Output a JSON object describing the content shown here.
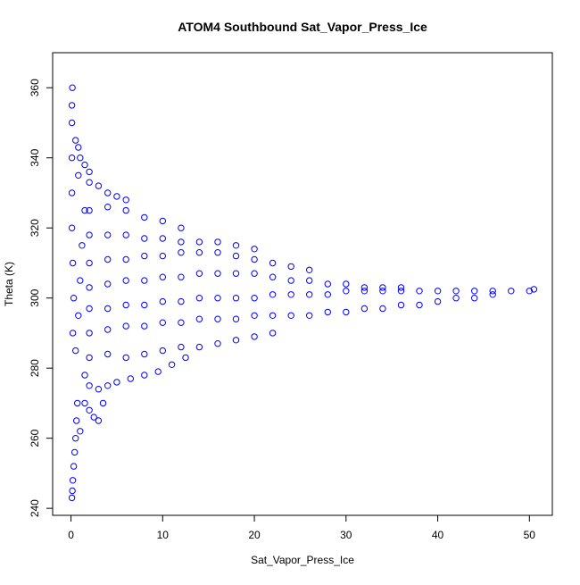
{
  "chart_data": {
    "type": "scatter",
    "title": "ATOM4 Southbound Sat_Vapor_Press_Ice",
    "xlabel": "Sat_Vapor_Press_Ice",
    "ylabel": "Theta (K)",
    "xlim": [
      -2,
      52.5
    ],
    "ylim": [
      238,
      370
    ],
    "x_ticks": [
      0,
      10,
      20,
      30,
      40,
      50
    ],
    "y_ticks": [
      240,
      260,
      280,
      300,
      320,
      340,
      360
    ],
    "marker": "open-circle",
    "series_color": "#0000ff",
    "grid": false,
    "legend": "none",
    "series": [
      {
        "points": [
          [
            0.1,
            243
          ],
          [
            0.15,
            245
          ],
          [
            0.2,
            248
          ],
          [
            0.3,
            252
          ],
          [
            0.4,
            256
          ],
          [
            0.5,
            260
          ],
          [
            0.6,
            265
          ],
          [
            0.7,
            270
          ],
          [
            0.2,
            290
          ],
          [
            0.3,
            300
          ],
          [
            0.2,
            310
          ],
          [
            0.1,
            320
          ],
          [
            0.1,
            330
          ],
          [
            0.1,
            340
          ],
          [
            0.1,
            350
          ],
          [
            0.1,
            355
          ],
          [
            0.15,
            360
          ],
          [
            0.5,
            285
          ],
          [
            0.8,
            295
          ],
          [
            1.0,
            305
          ],
          [
            1.2,
            315
          ],
          [
            1.5,
            325
          ],
          [
            0.8,
            335
          ],
          [
            1.0,
            262
          ],
          [
            1.5,
            270
          ],
          [
            2.0,
            268
          ],
          [
            2.5,
            266
          ],
          [
            3.0,
            265
          ],
          [
            3.5,
            270
          ],
          [
            1.5,
            278
          ],
          [
            2.0,
            275
          ],
          [
            3.0,
            274
          ],
          [
            4.0,
            275
          ],
          [
            5.0,
            276
          ],
          [
            6.5,
            277
          ],
          [
            8.0,
            278
          ],
          [
            9.5,
            279
          ],
          [
            11.0,
            281
          ],
          [
            12.5,
            283
          ],
          [
            2.0,
            283
          ],
          [
            4.0,
            284
          ],
          [
            6.0,
            283
          ],
          [
            8.0,
            284
          ],
          [
            10.0,
            285
          ],
          [
            12.0,
            286
          ],
          [
            14.0,
            286
          ],
          [
            16.0,
            287
          ],
          [
            18.0,
            288
          ],
          [
            20.0,
            289
          ],
          [
            22.0,
            290
          ],
          [
            2.0,
            290
          ],
          [
            4.0,
            291
          ],
          [
            6.0,
            292
          ],
          [
            8.0,
            292
          ],
          [
            10.0,
            293
          ],
          [
            12.0,
            293
          ],
          [
            14.0,
            294
          ],
          [
            16.0,
            294
          ],
          [
            18.0,
            294
          ],
          [
            20.0,
            295
          ],
          [
            22.0,
            295
          ],
          [
            24.0,
            295
          ],
          [
            26.0,
            295
          ],
          [
            28.0,
            296
          ],
          [
            30.0,
            296
          ],
          [
            32.0,
            297
          ],
          [
            34.0,
            297
          ],
          [
            36.0,
            298
          ],
          [
            38.0,
            298
          ],
          [
            40.0,
            299
          ],
          [
            42.0,
            300
          ],
          [
            44.0,
            300
          ],
          [
            46.0,
            301
          ],
          [
            48.0,
            302
          ],
          [
            50.0,
            302
          ],
          [
            50.5,
            302.5
          ],
          [
            2.0,
            297
          ],
          [
            4.0,
            297
          ],
          [
            6.0,
            298
          ],
          [
            8.0,
            298
          ],
          [
            10.0,
            299
          ],
          [
            12.0,
            299
          ],
          [
            14.0,
            300
          ],
          [
            16.0,
            300
          ],
          [
            18.0,
            300
          ],
          [
            20.0,
            300
          ],
          [
            22.0,
            301
          ],
          [
            24.0,
            301
          ],
          [
            26.0,
            301
          ],
          [
            28.0,
            301
          ],
          [
            30.0,
            302
          ],
          [
            32.0,
            302
          ],
          [
            34.0,
            302
          ],
          [
            36.0,
            302
          ],
          [
            38.0,
            302
          ],
          [
            40.0,
            302
          ],
          [
            42.0,
            302
          ],
          [
            44.0,
            302
          ],
          [
            46.0,
            302
          ],
          [
            2.0,
            303
          ],
          [
            4.0,
            304
          ],
          [
            6.0,
            305
          ],
          [
            8.0,
            305
          ],
          [
            10.0,
            306
          ],
          [
            12.0,
            306
          ],
          [
            14.0,
            307
          ],
          [
            16.0,
            307
          ],
          [
            18.0,
            307
          ],
          [
            20.0,
            307
          ],
          [
            22.0,
            306
          ],
          [
            24.0,
            305
          ],
          [
            26.0,
            305
          ],
          [
            28.0,
            304
          ],
          [
            30.0,
            304
          ],
          [
            32.0,
            303
          ],
          [
            34.0,
            303
          ],
          [
            36.0,
            303
          ],
          [
            2.0,
            310
          ],
          [
            4.0,
            311
          ],
          [
            6.0,
            311
          ],
          [
            8.0,
            312
          ],
          [
            10.0,
            312
          ],
          [
            12.0,
            313
          ],
          [
            14.0,
            313
          ],
          [
            16.0,
            313
          ],
          [
            18.0,
            312
          ],
          [
            20.0,
            311
          ],
          [
            22.0,
            310
          ],
          [
            24.0,
            309
          ],
          [
            26.0,
            308
          ],
          [
            2.0,
            318
          ],
          [
            4.0,
            318
          ],
          [
            6.0,
            318
          ],
          [
            8.0,
            317
          ],
          [
            10.0,
            317
          ],
          [
            12.0,
            316
          ],
          [
            14.0,
            316
          ],
          [
            16.0,
            316
          ],
          [
            18.0,
            315
          ],
          [
            20.0,
            314
          ],
          [
            2.0,
            325
          ],
          [
            4.0,
            326
          ],
          [
            6.0,
            325
          ],
          [
            8.0,
            323
          ],
          [
            10.0,
            322
          ],
          [
            12.0,
            320
          ],
          [
            2.0,
            333
          ],
          [
            3.0,
            332
          ],
          [
            4.0,
            330
          ],
          [
            5.0,
            329
          ],
          [
            6.0,
            328
          ],
          [
            1.0,
            340
          ],
          [
            1.5,
            338
          ],
          [
            2.0,
            336
          ],
          [
            0.5,
            345
          ],
          [
            0.8,
            343
          ]
        ]
      }
    ]
  }
}
